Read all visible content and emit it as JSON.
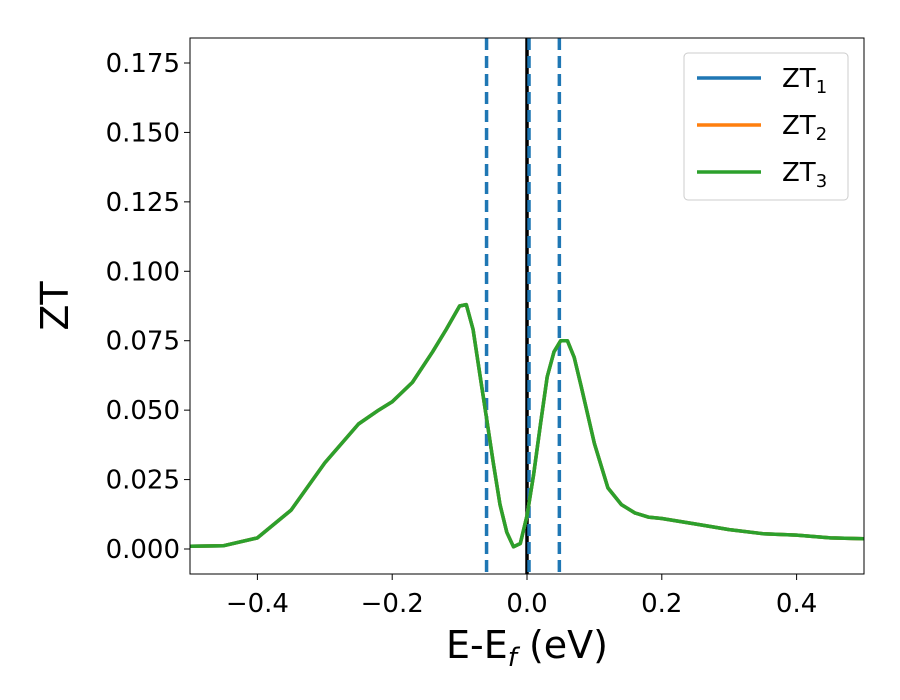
{
  "chart_data": {
    "type": "line",
    "xlabel": {
      "main": "E-E",
      "sub": "f",
      "unit": " (eV)"
    },
    "ylabel": "ZT",
    "xlim": [
      -0.5,
      0.5
    ],
    "ylim": [
      -0.009,
      0.184
    ],
    "x_ticks": [
      -0.4,
      -0.2,
      0.0,
      0.2,
      0.4
    ],
    "x_tick_labels": [
      "−0.4",
      "−0.2",
      "0.0",
      "0.2",
      "0.4"
    ],
    "y_ticks": [
      0.0,
      0.025,
      0.05,
      0.075,
      0.1,
      0.125,
      0.15,
      0.175
    ],
    "y_tick_labels": [
      "0.000",
      "0.025",
      "0.050",
      "0.075",
      "0.100",
      "0.125",
      "0.150",
      "0.175"
    ],
    "grid": false,
    "legend_position": "top-right",
    "x": [
      -0.5,
      -0.45,
      -0.4,
      -0.35,
      -0.3,
      -0.25,
      -0.22,
      -0.2,
      -0.17,
      -0.14,
      -0.12,
      -0.1,
      -0.09,
      -0.08,
      -0.07,
      -0.06,
      -0.05,
      -0.04,
      -0.03,
      -0.02,
      -0.01,
      0.0,
      0.01,
      0.02,
      0.03,
      0.04,
      0.05,
      0.06,
      0.07,
      0.08,
      0.1,
      0.12,
      0.14,
      0.16,
      0.18,
      0.2,
      0.25,
      0.3,
      0.35,
      0.4,
      0.45,
      0.5
    ],
    "series": [
      {
        "name": "ZT",
        "sub": "1",
        "color": "#1f77b4",
        "values": [
          0.001,
          0.0012,
          0.004,
          0.014,
          0.031,
          0.045,
          0.05,
          0.053,
          0.06,
          0.071,
          0.079,
          0.0875,
          0.088,
          0.079,
          0.063,
          0.047,
          0.031,
          0.016,
          0.006,
          0.0008,
          0.002,
          0.012,
          0.027,
          0.045,
          0.062,
          0.071,
          0.075,
          0.075,
          0.069,
          0.059,
          0.038,
          0.022,
          0.016,
          0.013,
          0.0115,
          0.011,
          0.009,
          0.007,
          0.0055,
          0.005,
          0.004,
          0.0037
        ]
      },
      {
        "name": "ZT",
        "sub": "2",
        "color": "#ff7f0e",
        "values": [
          0.001,
          0.0012,
          0.004,
          0.014,
          0.031,
          0.045,
          0.05,
          0.053,
          0.06,
          0.071,
          0.079,
          0.0875,
          0.088,
          0.079,
          0.063,
          0.047,
          0.031,
          0.016,
          0.006,
          0.0008,
          0.002,
          0.012,
          0.027,
          0.045,
          0.062,
          0.071,
          0.075,
          0.075,
          0.069,
          0.059,
          0.038,
          0.022,
          0.016,
          0.013,
          0.0115,
          0.011,
          0.009,
          0.007,
          0.0055,
          0.005,
          0.004,
          0.0037
        ]
      },
      {
        "name": "ZT",
        "sub": "3",
        "color": "#2ca02c",
        "values": [
          0.001,
          0.0012,
          0.004,
          0.014,
          0.031,
          0.045,
          0.05,
          0.053,
          0.06,
          0.071,
          0.079,
          0.0875,
          0.088,
          0.079,
          0.063,
          0.047,
          0.031,
          0.016,
          0.006,
          0.0008,
          0.002,
          0.012,
          0.027,
          0.045,
          0.062,
          0.071,
          0.075,
          0.075,
          0.069,
          0.059,
          0.038,
          0.022,
          0.016,
          0.013,
          0.0115,
          0.011,
          0.009,
          0.007,
          0.0055,
          0.005,
          0.004,
          0.0037
        ]
      }
    ],
    "vlines": [
      {
        "x": -0.06,
        "color": "#1f77b4",
        "style": "dashed"
      },
      {
        "x": 0.0,
        "color": "#000000",
        "style": "solid"
      },
      {
        "x": 0.003,
        "color": "#1f77b4",
        "style": "dashed"
      },
      {
        "x": 0.048,
        "color": "#1f77b4",
        "style": "dashed"
      }
    ]
  }
}
